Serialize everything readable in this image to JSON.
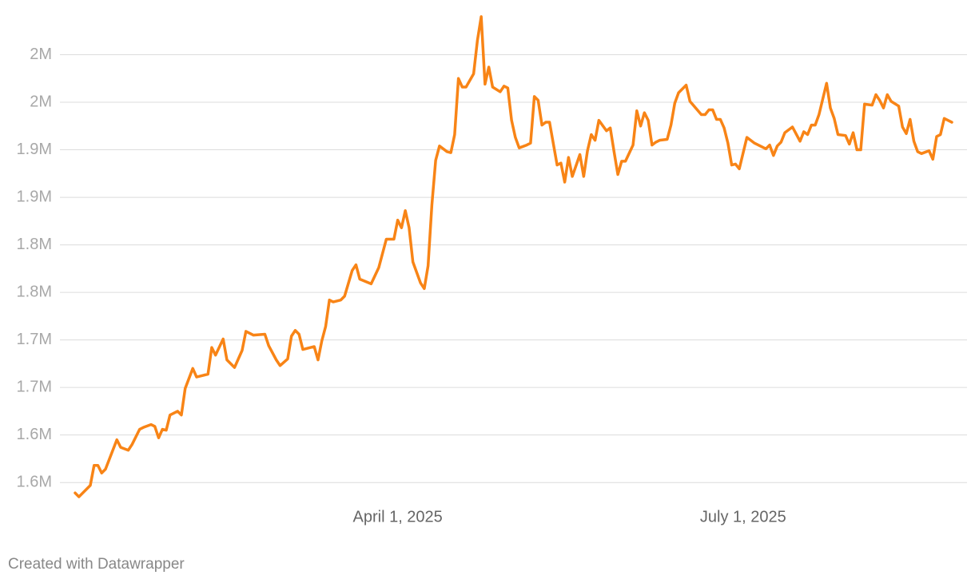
{
  "chart_data": {
    "type": "line",
    "credit": "Created with Datawrapper",
    "x": [
      "2025-01-06",
      "2025-01-07",
      "2025-01-10",
      "2025-01-11",
      "2025-01-12",
      "2025-01-13",
      "2025-01-14",
      "2025-01-17",
      "2025-01-18",
      "2025-01-20",
      "2025-01-21",
      "2025-01-23",
      "2025-01-24",
      "2025-01-26",
      "2025-01-27",
      "2025-01-28",
      "2025-01-29",
      "2025-01-30",
      "2025-01-31",
      "2025-02-02",
      "2025-02-03",
      "2025-02-04",
      "2025-02-06",
      "2025-02-07",
      "2025-02-10",
      "2025-02-11",
      "2025-02-12",
      "2025-02-14",
      "2025-02-15",
      "2025-02-17",
      "2025-02-19",
      "2025-02-20",
      "2025-02-22",
      "2025-02-25",
      "2025-02-26",
      "2025-02-28",
      "2025-03-01",
      "2025-03-03",
      "2025-03-04",
      "2025-03-05",
      "2025-03-06",
      "2025-03-07",
      "2025-03-10",
      "2025-03-11",
      "2025-03-12",
      "2025-03-13",
      "2025-03-14",
      "2025-03-15",
      "2025-03-17",
      "2025-03-18",
      "2025-03-20",
      "2025-03-21",
      "2025-03-22",
      "2025-03-25",
      "2025-03-27",
      "2025-03-29",
      "2025-03-31",
      "2025-04-01",
      "2025-04-02",
      "2025-04-03",
      "2025-04-04",
      "2025-04-05",
      "2025-04-07",
      "2025-04-08",
      "2025-04-09",
      "2025-04-10",
      "2025-04-11",
      "2025-04-12",
      "2025-04-14",
      "2025-04-15",
      "2025-04-16",
      "2025-04-17",
      "2025-04-18",
      "2025-04-19",
      "2025-04-21",
      "2025-04-22",
      "2025-04-23",
      "2025-04-24",
      "2025-04-25",
      "2025-04-26",
      "2025-04-28",
      "2025-04-29",
      "2025-04-30",
      "2025-05-01",
      "2025-05-02",
      "2025-05-03",
      "2025-05-05",
      "2025-05-06",
      "2025-05-07",
      "2025-05-08",
      "2025-05-09",
      "2025-05-10",
      "2025-05-11",
      "2025-05-13",
      "2025-05-14",
      "2025-05-15",
      "2025-05-16",
      "2025-05-17",
      "2025-05-19",
      "2025-05-20",
      "2025-05-21",
      "2025-05-22",
      "2025-05-23",
      "2025-05-24",
      "2025-05-26",
      "2025-05-27",
      "2025-05-28",
      "2025-05-29",
      "2025-05-30",
      "2025-05-31",
      "2025-06-02",
      "2025-06-03",
      "2025-06-04",
      "2025-06-05",
      "2025-06-06",
      "2025-06-07",
      "2025-06-08",
      "2025-06-09",
      "2025-06-11",
      "2025-06-12",
      "2025-06-13",
      "2025-06-14",
      "2025-06-15",
      "2025-06-16",
      "2025-06-17",
      "2025-06-20",
      "2025-06-21",
      "2025-06-22",
      "2025-06-23",
      "2025-06-24",
      "2025-06-25",
      "2025-06-26",
      "2025-06-27",
      "2025-06-28",
      "2025-06-29",
      "2025-06-30",
      "2025-07-02",
      "2025-07-03",
      "2025-07-04",
      "2025-07-06",
      "2025-07-07",
      "2025-07-08",
      "2025-07-09",
      "2025-07-10",
      "2025-07-11",
      "2025-07-12",
      "2025-07-14",
      "2025-07-16",
      "2025-07-17",
      "2025-07-18",
      "2025-07-19",
      "2025-07-20",
      "2025-07-21",
      "2025-07-23",
      "2025-07-24",
      "2025-07-25",
      "2025-07-26",
      "2025-07-28",
      "2025-07-29",
      "2025-07-30",
      "2025-07-31",
      "2025-08-01",
      "2025-08-02",
      "2025-08-04",
      "2025-08-05",
      "2025-08-06",
      "2025-08-07",
      "2025-08-08",
      "2025-08-09",
      "2025-08-11",
      "2025-08-12",
      "2025-08-13",
      "2025-08-14",
      "2025-08-15",
      "2025-08-16",
      "2025-08-17",
      "2025-08-19",
      "2025-08-20",
      "2025-08-21",
      "2025-08-22",
      "2025-08-23",
      "2025-08-25"
    ],
    "series": [
      {
        "color": "#f88416",
        "values": [
          1539000,
          1535000,
          1547000,
          1568000,
          1568000,
          1560000,
          1564000,
          1595000,
          1587000,
          1584000,
          1590000,
          1606000,
          1608000,
          1611000,
          1609000,
          1597000,
          1606000,
          1605000,
          1621000,
          1625000,
          1621000,
          1649000,
          1670000,
          1661000,
          1664000,
          1692000,
          1684000,
          1701000,
          1679000,
          1671000,
          1689000,
          1709000,
          1705000,
          1706000,
          1694000,
          1679000,
          1673000,
          1680000,
          1704000,
          1710000,
          1706000,
          1690000,
          1693000,
          1679000,
          1699000,
          1714000,
          1742000,
          1740000,
          1742000,
          1746000,
          1773000,
          1779000,
          1764000,
          1759000,
          1776000,
          1806000,
          1806000,
          1826000,
          1818000,
          1836000,
          1818000,
          1782000,
          1760000,
          1754000,
          1778000,
          1842000,
          1889000,
          1904000,
          1898000,
          1897000,
          1916000,
          1975000,
          1966000,
          1966000,
          1980000,
          2015000,
          2040000,
          1969000,
          1987000,
          1966000,
          1961000,
          1967000,
          1965000,
          1931000,
          1913000,
          1902000,
          1905000,
          1907000,
          1956000,
          1952000,
          1926000,
          1929000,
          1929000,
          1884000,
          1886000,
          1866000,
          1892000,
          1872000,
          1895000,
          1872000,
          1899000,
          1916000,
          1910000,
          1931000,
          1920000,
          1923000,
          1898000,
          1874000,
          1888000,
          1888000,
          1905000,
          1941000,
          1925000,
          1939000,
          1931000,
          1905000,
          1908000,
          1910000,
          1911000,
          1926000,
          1949000,
          1960000,
          1964000,
          1968000,
          1951000,
          1937000,
          1937000,
          1942000,
          1942000,
          1932000,
          1932000,
          1923000,
          1907000,
          1884000,
          1885000,
          1880000,
          1913000,
          1910000,
          1907000,
          1903000,
          1901000,
          1905000,
          1894000,
          1904000,
          1908000,
          1918000,
          1924000,
          1909000,
          1919000,
          1916000,
          1926000,
          1926000,
          1937000,
          1970000,
          1944000,
          1933000,
          1916000,
          1915000,
          1906000,
          1918000,
          1900000,
          1900000,
          1948000,
          1947000,
          1958000,
          1952000,
          1944000,
          1958000,
          1951000,
          1946000,
          1924000,
          1917000,
          1932000,
          1909000,
          1898000,
          1896000,
          1899000,
          1890000,
          1914000,
          1916000,
          1933000,
          1929000
        ]
      }
    ],
    "xlim": [
      "2025-01-02",
      "2025-08-29"
    ],
    "xticks": [
      {
        "value": "2025-04-01",
        "label": "April 1, 2025"
      },
      {
        "value": "2025-07-01",
        "label": "July 1, 2025"
      }
    ],
    "ylim": [
      1530000,
      2050000
    ],
    "yticks": [
      {
        "value": 1550000,
        "label": "1.6M"
      },
      {
        "value": 1600000,
        "label": "1.6M"
      },
      {
        "value": 1650000,
        "label": "1.7M"
      },
      {
        "value": 1700000,
        "label": "1.7M"
      },
      {
        "value": 1750000,
        "label": "1.8M"
      },
      {
        "value": 1800000,
        "label": "1.8M"
      },
      {
        "value": 1850000,
        "label": "1.9M"
      },
      {
        "value": 1900000,
        "label": "1.9M"
      },
      {
        "value": 1950000,
        "label": "2M"
      },
      {
        "value": 2000000,
        "label": "2M"
      }
    ],
    "grid": true
  }
}
